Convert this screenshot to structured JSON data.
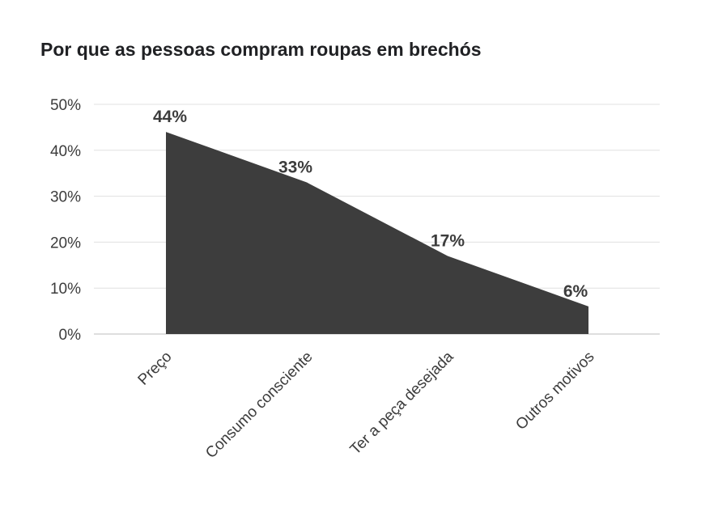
{
  "chart_data": {
    "type": "area",
    "title": "Por que as pessoas compram roupas em brechós",
    "xlabel": "",
    "ylabel": "",
    "categories": [
      "Preço",
      "Consumo consciente",
      "Ter a peça desejada",
      "Outros motivos"
    ],
    "values": [
      44,
      33,
      17,
      6
    ],
    "data_labels": [
      "44%",
      "33%",
      "17%",
      "6%"
    ],
    "ylim": [
      0,
      50
    ],
    "yticks": [
      0,
      10,
      20,
      30,
      40,
      50
    ],
    "ytick_labels": [
      "0%",
      "10%",
      "20%",
      "30%",
      "40%",
      "50%"
    ],
    "grid": true,
    "legend": "none",
    "colors": {
      "area": "#3d3d3d",
      "grid": "#e0e0e0",
      "axis": "#bdbdbd",
      "text": "#3c3c3c"
    }
  }
}
